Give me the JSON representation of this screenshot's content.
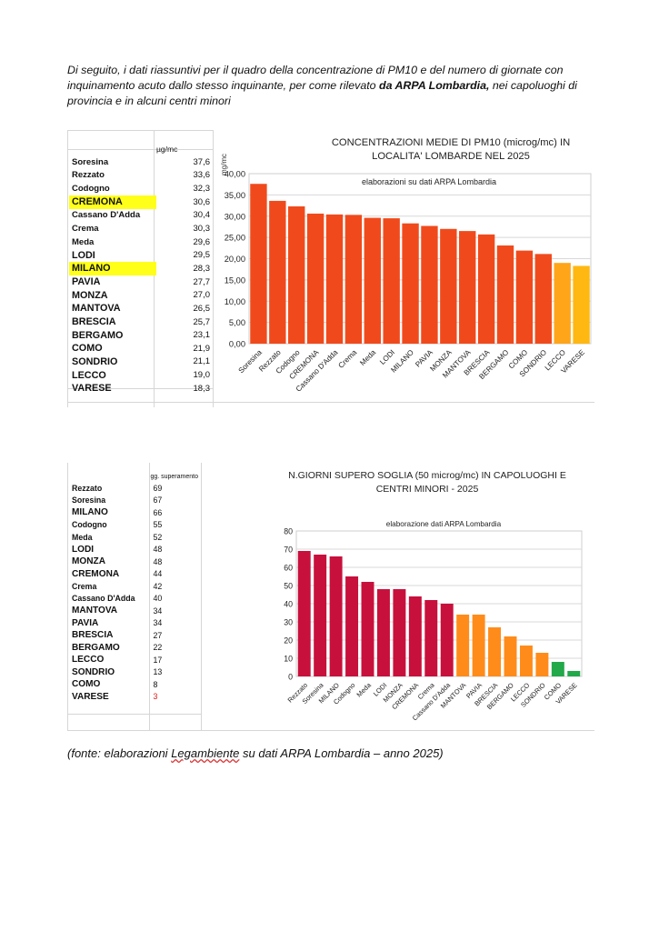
{
  "intro": {
    "text_before": "Di seguito, i dati riassuntivi per il quadro della concentrazione di PM10 e del numero di giornate con inquinamento acuto dallo stesso inquinante, per come rilevato ",
    "text_bold": "da ARPA Lombardia,",
    "text_after": " nei capoluoghi di provincia e in alcuni centri minori"
  },
  "table1": {
    "unit_header": "µg/mc",
    "rows": [
      {
        "name": "Soresina",
        "value": "37,6",
        "highlight": false
      },
      {
        "name": "Rezzato",
        "value": "33,6",
        "highlight": false
      },
      {
        "name": "Codogno",
        "value": "32,3",
        "highlight": false
      },
      {
        "name": "CREMONA",
        "value": "30,6",
        "highlight": true
      },
      {
        "name": "Cassano D'Adda",
        "value": "30,4",
        "highlight": false
      },
      {
        "name": "Crema",
        "value": "30,3",
        "highlight": false
      },
      {
        "name": "Meda",
        "value": "29,6",
        "highlight": false
      },
      {
        "name": "LODI",
        "value": "29,5",
        "highlight": false
      },
      {
        "name": "MILANO",
        "value": "28,3",
        "highlight": true
      },
      {
        "name": "PAVIA",
        "value": "27,7",
        "highlight": false
      },
      {
        "name": "MONZA",
        "value": "27,0",
        "highlight": false
      },
      {
        "name": "MANTOVA",
        "value": "26,5",
        "highlight": false
      },
      {
        "name": "BRESCIA",
        "value": "25,7",
        "highlight": false
      },
      {
        "name": "BERGAMO",
        "value": "23,1",
        "highlight": false
      },
      {
        "name": "COMO",
        "value": "21,9",
        "highlight": false
      },
      {
        "name": "SONDRIO",
        "value": "21,1",
        "highlight": false
      },
      {
        "name": "LECCO",
        "value": "19,0",
        "highlight": false
      },
      {
        "name": "VARESE",
        "value": "18,3",
        "highlight": false
      }
    ]
  },
  "table2": {
    "unit_header": "gg. superamento",
    "rows": [
      {
        "name": "Rezzato",
        "value": "69",
        "red": false
      },
      {
        "name": "Soresina",
        "value": "67",
        "red": false
      },
      {
        "name": "MILANO",
        "value": "66",
        "red": false
      },
      {
        "name": "Codogno",
        "value": "55",
        "red": false
      },
      {
        "name": "Meda",
        "value": "52",
        "red": false
      },
      {
        "name": "LODI",
        "value": "48",
        "red": false
      },
      {
        "name": "MONZA",
        "value": "48",
        "red": false
      },
      {
        "name": "CREMONA",
        "value": "44",
        "red": false
      },
      {
        "name": "Crema",
        "value": "42",
        "red": false
      },
      {
        "name": "Cassano D'Adda",
        "value": "40",
        "red": false
      },
      {
        "name": "MANTOVA",
        "value": "34",
        "red": false
      },
      {
        "name": "PAVIA",
        "value": "34",
        "red": false
      },
      {
        "name": "BRESCIA",
        "value": "27",
        "red": false
      },
      {
        "name": "BERGAMO",
        "value": "22",
        "red": false
      },
      {
        "name": "LECCO",
        "value": "17",
        "red": false
      },
      {
        "name": "SONDRIO",
        "value": "13",
        "red": false
      },
      {
        "name": "COMO",
        "value": "8",
        "red": false
      },
      {
        "name": "VARESE",
        "value": "3",
        "red": true
      }
    ]
  },
  "chart_data": [
    {
      "type": "bar",
      "title": "CONCENTRAZIONI MEDIE DI PM10 (microg/mc) IN LOCALITA' LOMBARDE NEL 2025",
      "subtitle": "elaborazioni su dati ARPA Lombardia",
      "ylabel": "mg/mc",
      "xlabel": "",
      "ylim": [
        0,
        40
      ],
      "yticks": [
        "0,00",
        "5,00",
        "10,00",
        "15,00",
        "20,00",
        "25,00",
        "30,00",
        "35,00",
        "40,00"
      ],
      "grid": true,
      "categories": [
        "Soresina",
        "Rezzato",
        "Codogno",
        "CREMONA",
        "Cassano D'Adda",
        "Crema",
        "Meda",
        "LODI",
        "MILANO",
        "PAVIA",
        "MONZA",
        "MANTOVA",
        "BRESCIA",
        "BERGAMO",
        "COMO",
        "SONDRIO",
        "LECCO",
        "VARESE"
      ],
      "values": [
        37.6,
        33.6,
        32.3,
        30.6,
        30.4,
        30.3,
        29.6,
        29.5,
        28.3,
        27.7,
        27.0,
        26.5,
        25.7,
        23.1,
        21.9,
        21.1,
        19.0,
        18.3
      ],
      "colors": [
        "#f04a1c",
        "#f04a1c",
        "#f04a1c",
        "#f04a1c",
        "#f04a1c",
        "#f04a1c",
        "#f04a1c",
        "#f04a1c",
        "#f04a1c",
        "#f04a1c",
        "#f04a1c",
        "#f04a1c",
        "#f04a1c",
        "#f04a1c",
        "#f04a1c",
        "#f04a1c",
        "#ffa51a",
        "#ffb812"
      ]
    },
    {
      "type": "bar",
      "title": "N.GIORNI SUPERO SOGLIA (50 microg/mc) IN CAPOLUOGHI E CENTRI MINORI - 2025",
      "subtitle": "elaborazione dati ARPA Lombardia",
      "ylabel": "",
      "xlabel": "",
      "ylim": [
        0,
        80
      ],
      "yticks": [
        "0",
        "10",
        "20",
        "30",
        "40",
        "50",
        "60",
        "70",
        "80"
      ],
      "grid": true,
      "categories": [
        "Rezzato",
        "Soresina",
        "MILANO",
        "Codogno",
        "Meda",
        "LODI",
        "MONZA",
        "CREMONA",
        "Crema",
        "Cassano D'Adda",
        "MANTOVA",
        "PAVIA",
        "BRESCIA",
        "BERGAMO",
        "LECCO",
        "SONDRIO",
        "COMO",
        "VARESE"
      ],
      "values": [
        69,
        67,
        66,
        55,
        52,
        48,
        48,
        44,
        42,
        40,
        34,
        34,
        27,
        22,
        17,
        13,
        8,
        3
      ],
      "colors": [
        "#c8103c",
        "#c8103c",
        "#c8103c",
        "#c8103c",
        "#c8103c",
        "#c8103c",
        "#c8103c",
        "#c8103c",
        "#c8103c",
        "#c8103c",
        "#ff8c1a",
        "#ff8c1a",
        "#ff8c1a",
        "#ff8c1a",
        "#ff8c1a",
        "#ff8c1a",
        "#22a94a",
        "#22a94a"
      ]
    }
  ],
  "source": {
    "prefix": "(fonte: elaborazioni ",
    "underlined": "Legambiente",
    "suffix": " su dati ARPA Lombardia – anno 2025)"
  }
}
